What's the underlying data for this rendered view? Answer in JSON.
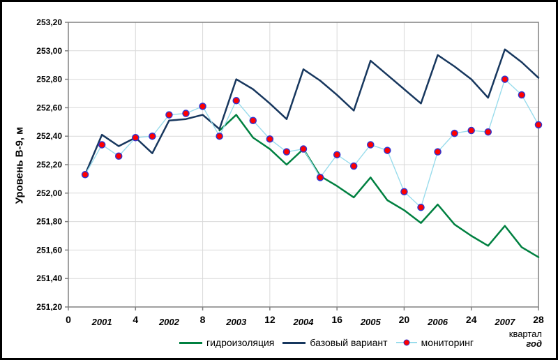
{
  "chart_data": {
    "type": "line",
    "title": "",
    "ylabel": "Уровень В-9, м",
    "xlabel_quarter": "квартал",
    "xlabel_year": "год",
    "ylim": [
      251.2,
      253.2
    ],
    "ytick_step": 0.2,
    "ytick_labels": [
      "251,20",
      "251,40",
      "251,60",
      "251,80",
      "252,00",
      "252,20",
      "252,40",
      "252,60",
      "252,80",
      "253,00",
      "253,20"
    ],
    "xlim": [
      0,
      28
    ],
    "xticks": [
      0,
      4,
      8,
      12,
      16,
      20,
      24,
      28
    ],
    "year_labels": [
      {
        "label": "2001",
        "q": 2
      },
      {
        "label": "2002",
        "q": 6
      },
      {
        "label": "2003",
        "q": 10
      },
      {
        "label": "2004",
        "q": 14
      },
      {
        "label": "2005",
        "q": 18
      },
      {
        "label": "2006",
        "q": 22
      },
      {
        "label": "2007",
        "q": 26
      }
    ],
    "x": [
      1,
      2,
      3,
      4,
      5,
      6,
      7,
      8,
      9,
      10,
      11,
      12,
      13,
      14,
      15,
      16,
      17,
      18,
      19,
      20,
      21,
      22,
      23,
      24,
      25,
      26,
      27,
      28
    ],
    "series": [
      {
        "key": "hydro",
        "name": "гидроизоляция",
        "color": "#008040",
        "width": 2.5,
        "values": [
          null,
          null,
          null,
          null,
          null,
          null,
          null,
          null,
          252.44,
          252.55,
          252.39,
          252.31,
          252.2,
          252.31,
          252.12,
          252.05,
          251.97,
          252.11,
          251.95,
          251.88,
          251.79,
          251.92,
          251.78,
          251.7,
          251.63,
          251.77,
          251.62,
          251.55
        ]
      },
      {
        "key": "baseline",
        "name": "базовый вариант",
        "color": "#17375E",
        "width": 2.5,
        "values": [
          252.13,
          252.41,
          252.33,
          252.39,
          252.28,
          252.51,
          252.52,
          252.55,
          252.45,
          252.8,
          252.73,
          252.63,
          252.52,
          252.87,
          252.79,
          252.69,
          252.58,
          252.93,
          252.83,
          252.73,
          252.63,
          252.97,
          252.89,
          252.8,
          252.67,
          253.01,
          252.92,
          252.81
        ]
      },
      {
        "key": "monitoring",
        "name": "мониторинг",
        "color": "#99DCEC",
        "width": 1.4,
        "marker": {
          "fill": "#FF0000",
          "stroke": "#3333CC",
          "radius": 4.5
        },
        "values": [
          252.13,
          252.34,
          252.26,
          252.39,
          252.4,
          252.55,
          252.56,
          252.61,
          252.4,
          252.65,
          252.51,
          252.38,
          252.29,
          252.31,
          252.11,
          252.27,
          252.19,
          252.34,
          252.3,
          252.01,
          251.9,
          252.29,
          252.42,
          252.44,
          252.43,
          252.8,
          252.69,
          252.48
        ]
      }
    ],
    "legend_position": "bottom-center",
    "grid": true,
    "colors": {
      "gridline": "#D9D9D9",
      "axis": "#808080",
      "text": "#000000",
      "background": "#FFFFFF",
      "frame_border": "#000000"
    }
  }
}
